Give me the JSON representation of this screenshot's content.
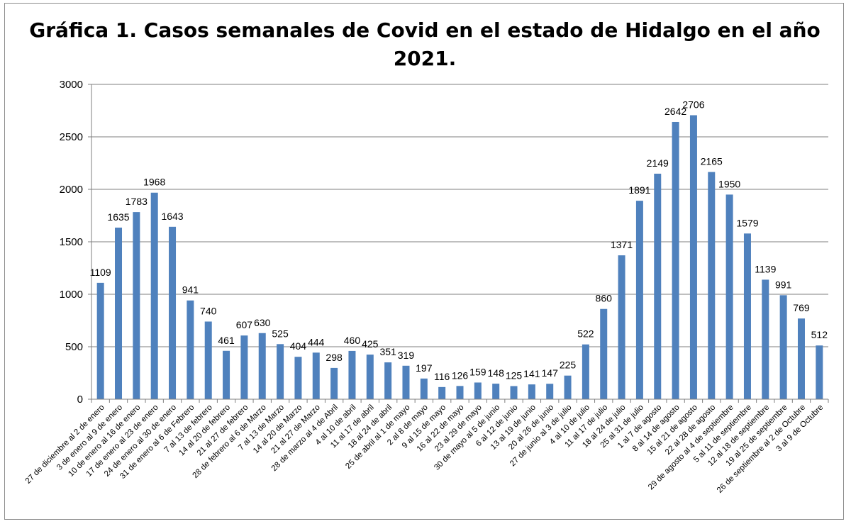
{
  "chart_data": {
    "type": "bar",
    "title_lines": [
      "Gráfica 1. Casos semanales de Covid en el estado de Hidalgo en el año",
      "2021."
    ],
    "xlabel": "",
    "ylabel": "",
    "ylim": [
      0,
      3000
    ],
    "yticks": [
      0,
      500,
      1000,
      1500,
      2000,
      2500,
      3000
    ],
    "grid": true,
    "legend": "none",
    "bar_color": "#4f81bd",
    "grid_color": "#7f7f7f",
    "categories": [
      "27 de diciembre al 2 de enero",
      "3 de enero al 9 de enero",
      "10 de enero al 16 de enero",
      "17 de enero al 23 de enero",
      "24 de enero al 30 de enero",
      "31 de enero al 6 de Febrero",
      "7 al 13 de febrero",
      "14 al 20 de febrero",
      "21 al 27 de febrero",
      "28 de febrero al 6 de Marzo",
      "7 al 13 de Marzo",
      "14 al 20 de Marzo",
      "21 al 27 de Marzo",
      "28 de marzo al 4 de Abril",
      "4 al 10 de abril",
      "11 al 17 de abril",
      "18 al 24 de abril",
      "25 de abril al 1 de mayo",
      "2 al 8 de mayo",
      "9 al 15 de mayo",
      "16 al 22 de mayo",
      "23 al 29 de mayo",
      "30 de mayo al 5 de junio",
      "6 al 12 de junio",
      "13 al 19 de junio",
      "20 al 26 de junio",
      "27 de junio al 3 de julio",
      "4 al 10 de julio",
      "11 al 17 de julio",
      "18 al 24 de julio",
      "25 al 31 de julio",
      "1 al 7 de agosto",
      "8 al 14 de agosto",
      "15 al 21 de agosto",
      "22 al 28 de agosto",
      "29 de agosto al 4 de septiembre",
      "5 al 11 de septiembre",
      "12 al 18 de septiembre",
      "19 al 25 de septiembre",
      "26 de septiembre al 2 de Octubre",
      "3 al 9 de Octubre"
    ],
    "values": [
      1109,
      1635,
      1783,
      1968,
      1643,
      941,
      740,
      461,
      607,
      630,
      525,
      404,
      444,
      298,
      460,
      425,
      351,
      319,
      197,
      116,
      126,
      159,
      148,
      125,
      141,
      147,
      225,
      522,
      860,
      1371,
      1891,
      2149,
      2642,
      2706,
      2165,
      1950,
      1579,
      1139,
      991,
      769,
      512
    ]
  }
}
